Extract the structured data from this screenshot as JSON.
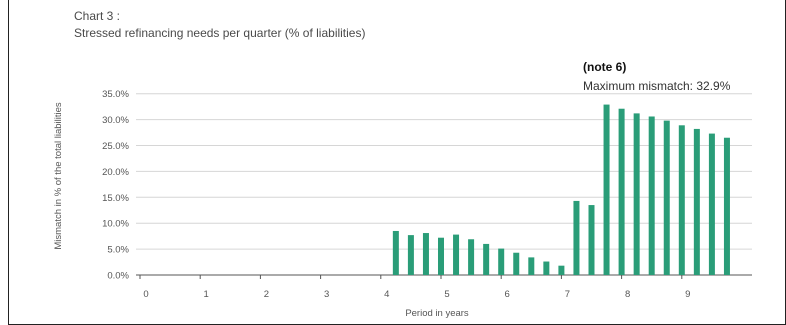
{
  "chart_data": {
    "type": "bar",
    "title": "Chart 3 :",
    "subtitle": "Stressed refinancing needs per quarter  (% of liabilities)",
    "note_title": "(note 6)",
    "note_text": "Maximum mismatch: 32.9%",
    "xlabel": "Period in years",
    "ylabel": "Mismatch in % of the total liabilities",
    "x_ticks": [
      "0",
      "1",
      "2",
      "3",
      "4",
      "5",
      "6",
      "7",
      "8",
      "9"
    ],
    "y_ticks": [
      "0.0%",
      "5.0%",
      "10.0%",
      "15.0%",
      "20.0%",
      "25.0%",
      "30.0%",
      "35.0%"
    ],
    "ylim": [
      0,
      35
    ],
    "bar_color": "#2a9d78",
    "grid": true,
    "series": [
      {
        "x": [
          4.25,
          4.5,
          4.75,
          5.0,
          5.25,
          5.5,
          5.75,
          6.0,
          6.25,
          6.5,
          6.75,
          7.0,
          7.25,
          7.5,
          7.75,
          8.0,
          8.25,
          8.5,
          8.75,
          9.0,
          9.25,
          9.5,
          9.75
        ],
        "values": [
          8.5,
          7.7,
          8.1,
          7.2,
          7.8,
          6.9,
          6.0,
          5.1,
          4.3,
          3.4,
          2.6,
          1.8,
          14.3,
          13.5,
          32.9,
          32.1,
          31.2,
          30.6,
          29.8,
          28.9,
          28.2,
          27.3,
          26.5
        ]
      }
    ]
  }
}
